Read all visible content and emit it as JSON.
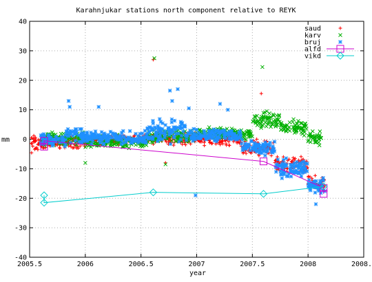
{
  "chart_data": {
    "type": "scatter",
    "title": "Karahnjukar stations north component relative to REYK",
    "xlabel": "year",
    "ylabel": "mm",
    "xlim": [
      2005.5,
      2008.5
    ],
    "ylim": [
      -40,
      40
    ],
    "xticks": [
      "2005.5",
      "2006",
      "2006.5",
      "2007",
      "2007.5",
      "2008",
      "2008.5"
    ],
    "yticks": [
      "-40",
      "-30",
      "-20",
      "-10",
      "0",
      "10",
      "20",
      "30",
      "40"
    ],
    "grid": true,
    "legend_position": "top-right",
    "series": [
      {
        "name": "saud",
        "color": "#ff0000",
        "marker": "plus",
        "segments": [
          {
            "x0": 2005.5,
            "x1": 2005.68,
            "ymean": -1.5,
            "spread": 3.5
          },
          {
            "x0": 2005.68,
            "x1": 2006.0,
            "ymean": -1.0,
            "spread": 2.5
          },
          {
            "x0": 2006.0,
            "x1": 2006.55,
            "ymean": 0.0,
            "spread": 2.0
          },
          {
            "x0": 2006.55,
            "x1": 2007.0,
            "ymean": 0.5,
            "spread": 2.5
          },
          {
            "x0": 2007.0,
            "x1": 2007.4,
            "ymean": 0.0,
            "spread": 2.5
          },
          {
            "x0": 2007.4,
            "x1": 2007.7,
            "ymean": -3.0,
            "spread": 3.0
          },
          {
            "x0": 2007.7,
            "x1": 2008.0,
            "ymean": -9.0,
            "spread": 3.5
          },
          {
            "x0": 2008.0,
            "x1": 2008.15,
            "ymean": -15.0,
            "spread": 3.5
          }
        ],
        "outliers": [
          [
            2006.61,
            27.0
          ],
          [
            2007.58,
            15.5
          ],
          [
            2006.72,
            -8.0
          ]
        ]
      },
      {
        "name": "karv",
        "color": "#00b000",
        "marker": "cross",
        "segments": [
          {
            "x0": 2005.6,
            "x1": 2006.0,
            "ymean": 0.0,
            "spread": 3.0
          },
          {
            "x0": 2006.0,
            "x1": 2006.55,
            "ymean": -1.0,
            "spread": 2.5
          },
          {
            "x0": 2006.55,
            "x1": 2007.0,
            "ymean": 1.0,
            "spread": 2.5
          },
          {
            "x0": 2007.0,
            "x1": 2007.5,
            "ymean": 2.0,
            "spread": 2.5
          },
          {
            "x0": 2007.5,
            "x1": 2007.75,
            "ymean": 6.5,
            "spread": 3.5
          },
          {
            "x0": 2007.75,
            "x1": 2008.0,
            "ymean": 4.0,
            "spread": 3.0
          },
          {
            "x0": 2008.0,
            "x1": 2008.12,
            "ymean": 0.5,
            "spread": 2.5
          }
        ],
        "outliers": [
          [
            2006.62,
            27.5
          ],
          [
            2007.59,
            24.5
          ],
          [
            2006.72,
            -8.5
          ],
          [
            2006.0,
            -8.0
          ]
        ]
      },
      {
        "name": "bruj",
        "color": "#1e90ff",
        "marker": "star",
        "segments": [
          {
            "x0": 2005.6,
            "x1": 2005.8,
            "ymean": 0.0,
            "spread": 3.0
          },
          {
            "x0": 2005.8,
            "x1": 2006.0,
            "ymean": 1.0,
            "spread": 4.0
          },
          {
            "x0": 2006.0,
            "x1": 2006.55,
            "ymean": 0.5,
            "spread": 2.5
          },
          {
            "x0": 2006.55,
            "x1": 2006.9,
            "ymean": 3.0,
            "spread": 4.5
          },
          {
            "x0": 2006.9,
            "x1": 2007.4,
            "ymean": 1.5,
            "spread": 2.5
          },
          {
            "x0": 2007.4,
            "x1": 2007.7,
            "ymean": -3.0,
            "spread": 3.0
          },
          {
            "x0": 2007.7,
            "x1": 2008.0,
            "ymean": -10.0,
            "spread": 3.5
          },
          {
            "x0": 2008.0,
            "x1": 2008.15,
            "ymean": -16.0,
            "spread": 3.0
          }
        ],
        "outliers": [
          [
            2005.85,
            13.0
          ],
          [
            2005.86,
            11.0
          ],
          [
            2006.12,
            11.0
          ],
          [
            2006.76,
            16.5
          ],
          [
            2006.83,
            17.0
          ],
          [
            2006.78,
            13.0
          ],
          [
            2007.21,
            12.0
          ],
          [
            2007.28,
            10.0
          ],
          [
            2006.93,
            10.5
          ],
          [
            2008.07,
            -22.0
          ],
          [
            2006.99,
            -19.0
          ]
        ]
      },
      {
        "name": "alfd",
        "color": "#cc00cc",
        "marker": "square",
        "points": [
          [
            2005.63,
            -2.5
          ],
          [
            2005.63,
            -0.5
          ],
          [
            2007.6,
            -7.5
          ],
          [
            2008.14,
            -16.5
          ],
          [
            2008.14,
            -18.5
          ]
        ]
      },
      {
        "name": "vikd",
        "color": "#00cccc",
        "marker": "diamond",
        "points": [
          [
            2005.63,
            -19.0
          ],
          [
            2005.63,
            -21.5
          ],
          [
            2006.61,
            -18.0
          ],
          [
            2007.6,
            -18.5
          ],
          [
            2008.14,
            -16.0
          ]
        ]
      }
    ]
  }
}
